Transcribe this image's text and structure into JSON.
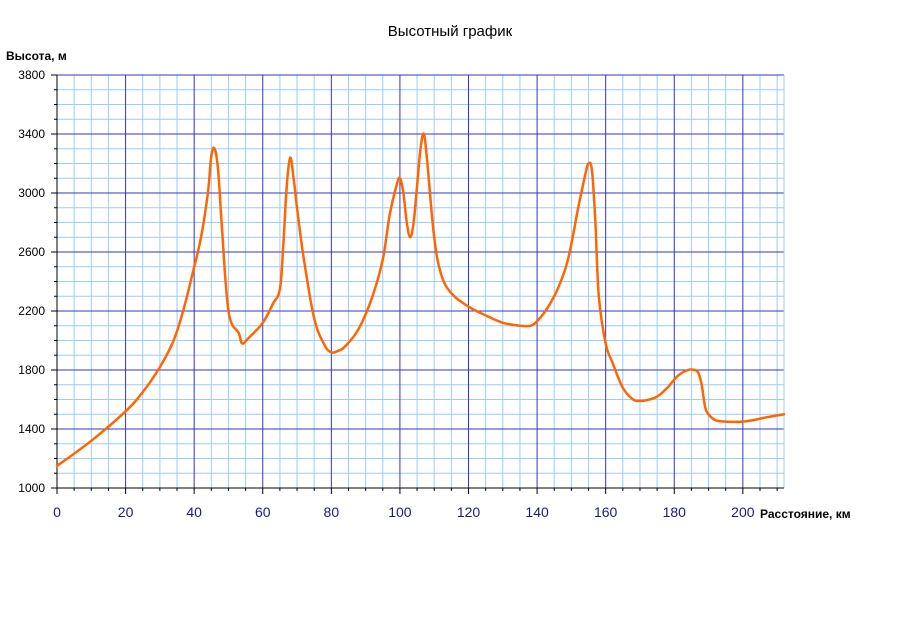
{
  "chart_data": {
    "type": "line",
    "title": "Высотный график",
    "xlabel": "Расстояние, км",
    "ylabel": "Высота, м",
    "xlim": [
      0,
      212
    ],
    "ylim": [
      1000,
      3800
    ],
    "x_ticks": [
      "0",
      "20",
      "40",
      "60",
      "80",
      "100",
      "120",
      "140",
      "160",
      "180",
      "200"
    ],
    "y_ticks": [
      "3800",
      "3400",
      "3000",
      "2600",
      "2200",
      "1800",
      "1400",
      "1000"
    ],
    "grid": true,
    "colors": {
      "line": "#ff6600",
      "major_grid": "#3333cc",
      "minor_grid": "#99ccff",
      "axis": "#000000"
    },
    "series": [
      {
        "x": [
          0,
          10,
          20,
          25,
          30,
          34,
          37,
          40,
          42,
          44,
          45,
          46,
          47,
          48,
          50,
          53,
          54,
          56,
          60,
          63,
          65,
          66,
          67,
          68,
          69,
          70,
          72,
          75,
          78,
          80,
          82,
          84,
          88,
          92,
          95,
          97,
          99,
          100,
          101,
          102,
          103,
          104,
          105,
          106,
          107,
          108,
          110,
          112,
          115,
          120,
          125,
          130,
          135,
          138,
          140,
          143,
          146,
          149,
          152,
          154,
          155,
          156,
          157,
          158,
          160,
          162,
          165,
          168,
          170,
          172,
          175,
          178,
          181,
          184,
          186,
          187,
          188,
          189,
          190,
          192,
          195,
          200,
          203,
          207,
          212
        ],
        "y": [
          1150,
          1320,
          1520,
          1650,
          1820,
          2000,
          2220,
          2500,
          2700,
          3000,
          3250,
          3300,
          3150,
          2800,
          2200,
          2050,
          1980,
          2020,
          2120,
          2250,
          2350,
          2650,
          3050,
          3240,
          3100,
          2900,
          2550,
          2150,
          1970,
          1920,
          1930,
          1960,
          2080,
          2300,
          2550,
          2850,
          3050,
          3100,
          3000,
          2800,
          2700,
          2800,
          3050,
          3300,
          3400,
          3200,
          2700,
          2450,
          2320,
          2230,
          2170,
          2120,
          2100,
          2100,
          2130,
          2220,
          2350,
          2550,
          2900,
          3120,
          3200,
          3150,
          2800,
          2300,
          1980,
          1850,
          1680,
          1600,
          1590,
          1595,
          1620,
          1680,
          1760,
          1800,
          1800,
          1780,
          1700,
          1550,
          1500,
          1460,
          1450,
          1450,
          1460,
          1480,
          1500
        ]
      }
    ]
  }
}
